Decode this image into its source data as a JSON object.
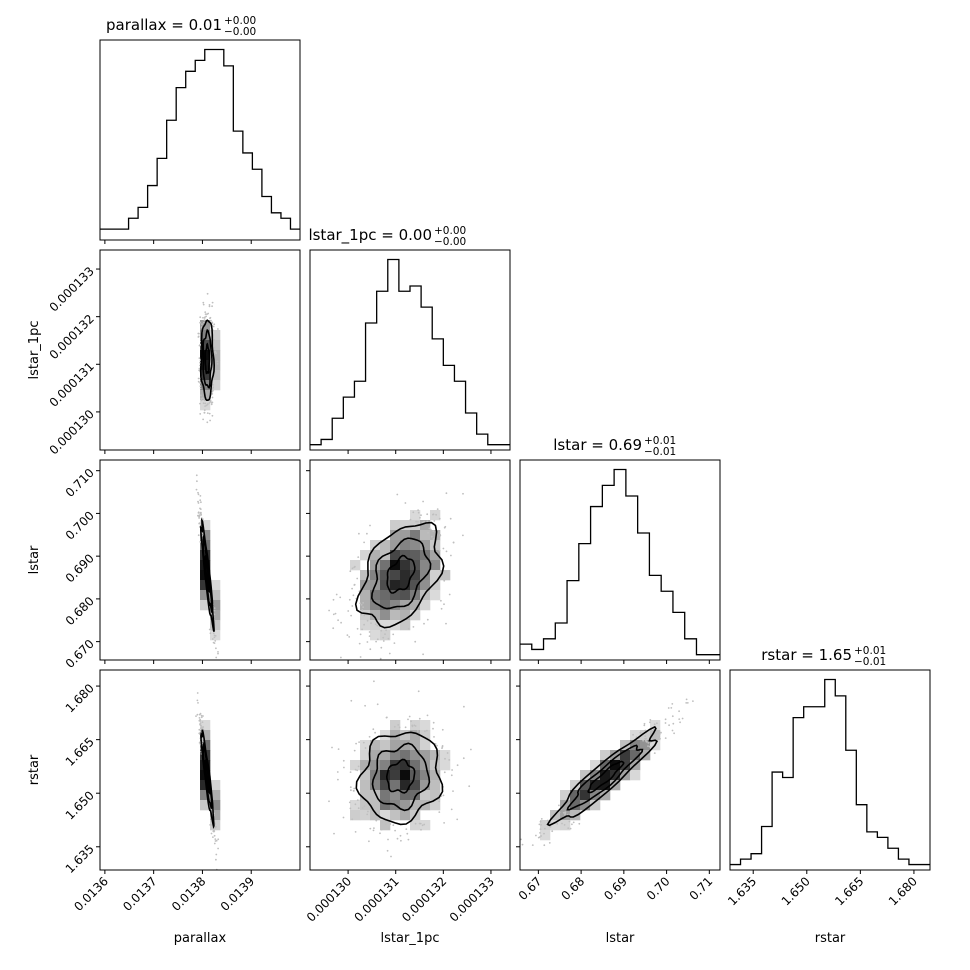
{
  "parameters": [
    "parallax",
    "lstar_1pc",
    "lstar",
    "rstar"
  ],
  "titles": [
    {
      "name": "parallax",
      "value": "0.01",
      "plus": "+0.00",
      "minus": "−0.00"
    },
    {
      "name": "lstar_1pc",
      "value": "0.00",
      "plus": "+0.00",
      "minus": "−0.00"
    },
    {
      "name": "lstar",
      "value": "0.69",
      "plus": "+0.01",
      "minus": "−0.01"
    },
    {
      "name": "rstar",
      "value": "1.65",
      "plus": "+0.01",
      "minus": "−0.01"
    }
  ],
  "x_ticks": [
    [
      "0.0136",
      "0.0137",
      "0.0138",
      "0.0139"
    ],
    [
      "0.000130",
      "0.000131",
      "0.000132",
      "0.000133"
    ],
    [
      "0.67",
      "0.68",
      "0.69",
      "0.70",
      "0.71"
    ],
    [
      "1.635",
      "1.650",
      "1.665",
      "1.680"
    ]
  ],
  "y_ticks": {
    "lstar_1pc": [
      "0.000130",
      "0.000131",
      "0.000132",
      "0.000133"
    ],
    "lstar": [
      "0.670",
      "0.680",
      "0.690",
      "0.700",
      "0.710"
    ],
    "rstar": [
      "1.635",
      "1.650",
      "1.665",
      "1.680"
    ]
  },
  "colors": {
    "line": "#000000",
    "frame": "#000000",
    "background": "#ffffff"
  },
  "chart_data": {
    "type": "corner",
    "variables": [
      "parallax",
      "lstar_1pc",
      "lstar",
      "rstar"
    ],
    "ranges": {
      "parallax": [
        0.01359,
        0.014
      ],
      "lstar_1pc": [
        0.0001292,
        0.0001334
      ],
      "lstar": [
        0.6657,
        0.7125
      ],
      "rstar": [
        1.6285,
        1.6845
      ]
    },
    "medians": {
      "parallax": 0.01381,
      "lstar_1pc": 0.0001311,
      "lstar": 0.69,
      "rstar": 1.65
    },
    "histograms": {
      "parallax": [
        2,
        2,
        2,
        4,
        6,
        10,
        15,
        22,
        28,
        31,
        33,
        35,
        35,
        32,
        20,
        16,
        13,
        8,
        5,
        4,
        2
      ],
      "lstar_1pc": [
        1,
        2,
        6,
        10,
        13,
        24,
        30,
        36,
        30,
        31,
        27,
        21,
        16,
        13,
        7,
        3,
        1,
        1
      ],
      "lstar": [
        3,
        2,
        4,
        7,
        15,
        22,
        29,
        33,
        36,
        31,
        24,
        16,
        13,
        9,
        4,
        1,
        1
      ],
      "rstar": [
        1,
        2,
        3,
        8,
        18,
        17,
        28,
        30,
        30,
        35,
        32,
        22,
        12,
        7,
        6,
        4,
        2,
        1,
        1
      ]
    },
    "pairs": [
      {
        "x": "parallax",
        "y": "lstar_1pc",
        "mean": [
          0.01381,
          0.0001311
        ],
        "sd": [
          7.2e-06,
          4.8e-07
        ],
        "corr": 0.0
      },
      {
        "x": "parallax",
        "y": "lstar",
        "mean": [
          0.01381,
          0.6857
        ],
        "sd": [
          7.2e-06,
          0.0068
        ],
        "corr": -0.92
      },
      {
        "x": "lstar_1pc",
        "y": "lstar",
        "mean": [
          0.0001311,
          0.6857
        ],
        "sd": [
          4.8e-07,
          0.0068
        ],
        "corr": 0.4
      },
      {
        "x": "parallax",
        "y": "rstar",
        "mean": [
          0.01381,
          1.6546
        ],
        "sd": [
          7.2e-06,
          0.0072
        ],
        "corr": -0.92
      },
      {
        "x": "lstar_1pc",
        "y": "rstar",
        "mean": [
          0.0001311,
          1.6546
        ],
        "sd": [
          4.8e-07,
          0.0072
        ],
        "corr": 0.1
      },
      {
        "x": "lstar",
        "y": "rstar",
        "mean": [
          0.6857,
          1.6546
        ],
        "sd": [
          0.0068,
          0.0072
        ],
        "corr": 0.93
      }
    ]
  }
}
